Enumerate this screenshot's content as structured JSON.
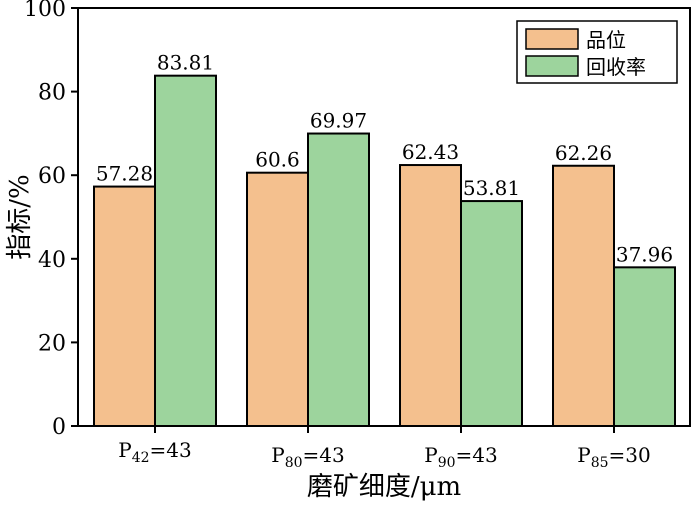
{
  "chart_data": {
    "type": "bar",
    "categories": [
      {
        "base": "P",
        "sub": "42",
        "rest": "=43"
      },
      {
        "base": "P",
        "sub": "80",
        "rest": "=43"
      },
      {
        "base": "P",
        "sub": "90",
        "rest": "=43"
      },
      {
        "base": "P",
        "sub": "85",
        "rest": "=30"
      }
    ],
    "series": [
      {
        "name": "品位",
        "color": "#f4c08e",
        "values": [
          57.28,
          60.6,
          62.43,
          62.26
        ],
        "labels": [
          "57.28",
          "60.6",
          "62.43",
          "62.26"
        ]
      },
      {
        "name": "回收率",
        "color": "#9dd49d",
        "values": [
          83.81,
          69.97,
          53.81,
          37.96
        ],
        "labels": [
          "83.81",
          "69.97",
          "53.81",
          "37.96"
        ]
      }
    ],
    "xlabel": "磨矿细度/μm",
    "ylabel": "指标/%",
    "ylim": [
      0,
      100
    ],
    "yticks": [
      0,
      20,
      40,
      60,
      80,
      100
    ],
    "ytick_labels": [
      "0",
      "20",
      "40",
      "60",
      "80",
      "100"
    ],
    "grid": false,
    "legend_position": "top-right"
  }
}
